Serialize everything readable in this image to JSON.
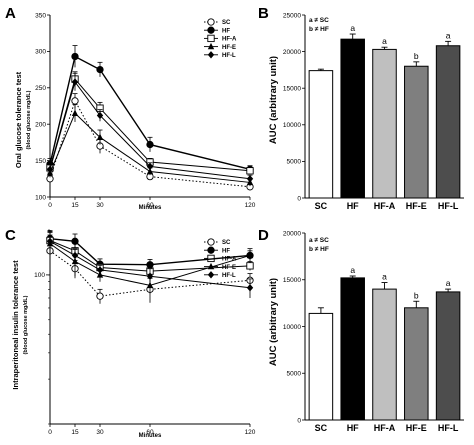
{
  "panels": {
    "A": {
      "letter": "A",
      "ylabel": "Oral glucose tolerance test",
      "ylabel_sub": "(blood glucose mg/dL)",
      "xlabel": "Minutes",
      "legend": [
        "SC",
        "HF",
        "HF-A",
        "HF-E",
        "HF-L"
      ]
    },
    "B": {
      "letter": "B",
      "ylabel": "AUC (arbitrary unit)",
      "notes": [
        "a ≠ SC",
        "b ≠ HF"
      ]
    },
    "C": {
      "letter": "C",
      "ylabel": "Intraperitoneal insulin tolerance test",
      "ylabel_sub": "(blood glucose mg/dL)",
      "xlabel": "Minutes",
      "legend": [
        "SC",
        "HF",
        "HF-A",
        "HF-E",
        "HF-L"
      ]
    },
    "D": {
      "letter": "D",
      "ylabel": "AUC (arbitrary unit)",
      "notes": [
        "a ≠ SC",
        "b ≠ HF"
      ]
    }
  },
  "chart_data": [
    {
      "panel": "A",
      "type": "line",
      "xlabel": "Minutes",
      "ylabel": "Oral glucose tolerance test (blood glucose mg/dL)",
      "x": [
        0,
        15,
        30,
        60,
        120
      ],
      "xticks": [
        0,
        15,
        30,
        60,
        120
      ],
      "ylim": [
        100,
        350
      ],
      "yticks": [
        100,
        150,
        200,
        250,
        300,
        350
      ],
      "series": [
        {
          "name": "SC",
          "marker": "open-circle",
          "line": "dotted",
          "values": [
            125,
            232,
            170,
            128,
            114
          ],
          "errors": [
            8,
            10,
            10,
            4,
            4
          ]
        },
        {
          "name": "HF",
          "marker": "filled-circle",
          "line": "solid",
          "values": [
            145,
            293,
            275,
            172,
            138
          ],
          "errors": [
            8,
            15,
            10,
            10,
            5
          ]
        },
        {
          "name": "HF-A",
          "marker": "open-square",
          "line": "solid",
          "values": [
            140,
            262,
            222,
            148,
            136
          ],
          "errors": [
            6,
            10,
            8,
            5,
            5
          ]
        },
        {
          "name": "HF-E",
          "marker": "filled-triangle",
          "line": "solid",
          "values": [
            133,
            215,
            182,
            135,
            120
          ],
          "errors": [
            6,
            12,
            10,
            5,
            5
          ]
        },
        {
          "name": "HF-L",
          "marker": "filled-diamond",
          "line": "solid",
          "values": [
            138,
            258,
            212,
            142,
            125
          ],
          "errors": [
            6,
            12,
            8,
            5,
            5
          ]
        }
      ]
    },
    {
      "panel": "B",
      "type": "bar",
      "ylabel": "AUC (arbitrary unit)",
      "categories": [
        "SC",
        "HF",
        "HF-A",
        "HF-E",
        "HF-L"
      ],
      "values": [
        17400,
        21700,
        20300,
        18000,
        20800
      ],
      "errors": [
        200,
        700,
        300,
        600,
        600
      ],
      "significance": [
        "",
        "a",
        "a",
        "b",
        "a"
      ],
      "fills": [
        "#ffffff",
        "#000000",
        "#bfbfbf",
        "#7f7f7f",
        "#4d4d4d"
      ],
      "ylim": [
        0,
        25000
      ],
      "yticks": [
        0,
        5000,
        10000,
        15000,
        20000,
        25000
      ]
    },
    {
      "panel": "C",
      "type": "line",
      "xlabel": "Minutes",
      "ylabel": "Intraperitoneal insulin tolerance test (blood glucose mg/dL)",
      "x": [
        0,
        15,
        30,
        60,
        120
      ],
      "xticks": [
        0,
        15,
        30,
        60,
        120
      ],
      "ylim": [
        10,
        200
      ],
      "log_y": true,
      "yticks": [
        100
      ],
      "series": [
        {
          "name": "SC",
          "marker": "open-circle",
          "line": "dotted",
          "values": [
            145,
            110,
            72,
            80,
            92
          ],
          "errors": [
            40,
            15,
            8,
            15,
            10
          ]
        },
        {
          "name": "HF",
          "marker": "filled-circle",
          "line": "solid",
          "values": [
            175,
            168,
            118,
            117,
            135
          ],
          "errors": [
            20,
            20,
            10,
            10,
            15
          ]
        },
        {
          "name": "HF-A",
          "marker": "open-square",
          "line": "solid",
          "values": [
            170,
            145,
            112,
            106,
            115
          ],
          "errors": [
            25,
            20,
            10,
            8,
            8
          ]
        },
        {
          "name": "HF-E",
          "marker": "filled-triangle",
          "line": "solid",
          "values": [
            162,
            123,
            100,
            85,
            135
          ],
          "errors": [
            30,
            25,
            10,
            10,
            10
          ]
        },
        {
          "name": "HF-L",
          "marker": "filled-diamond",
          "line": "solid",
          "values": [
            168,
            135,
            108,
            98,
            82
          ],
          "errors": [
            30,
            15,
            8,
            12,
            12
          ]
        }
      ]
    },
    {
      "panel": "D",
      "type": "bar",
      "ylabel": "AUC (arbitrary unit)",
      "categories": [
        "SC",
        "HF",
        "HF-A",
        "HF-E",
        "HF-L"
      ],
      "values": [
        11400,
        15200,
        14000,
        12000,
        13700
      ],
      "errors": [
        600,
        200,
        700,
        700,
        300
      ],
      "significance": [
        "",
        "a",
        "a",
        "b",
        "a"
      ],
      "fills": [
        "#ffffff",
        "#000000",
        "#bfbfbf",
        "#7f7f7f",
        "#4d4d4d"
      ],
      "ylim": [
        0,
        20000
      ],
      "yticks": [
        0,
        5000,
        10000,
        15000,
        20000
      ]
    }
  ]
}
